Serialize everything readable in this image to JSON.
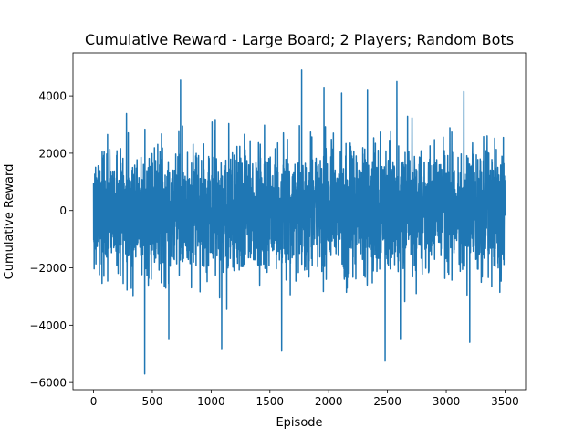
{
  "chart_data": {
    "type": "line",
    "title": "Cumulative Reward - Large Board; 2 Players; Random Bots",
    "xlabel": "Episode",
    "ylabel": "Cumulative Reward",
    "xlim": [
      -175,
      3675
    ],
    "ylim": [
      -6250,
      5500
    ],
    "xticks": [
      0,
      500,
      1000,
      1500,
      2000,
      2500,
      3000,
      3500
    ],
    "yticks": [
      -6000,
      -4000,
      -2000,
      0,
      2000,
      4000
    ],
    "grid": false,
    "series": [
      {
        "color": "#1f77b4",
        "n_points": 3500,
        "typical_range": [
          -2000,
          2000
        ],
        "peaks": [
          {
            "x": 740,
            "y": 4550
          },
          {
            "x": 1770,
            "y": 4900
          },
          {
            "x": 2580,
            "y": 4500
          },
          {
            "x": 1960,
            "y": 4300
          },
          {
            "x": 2110,
            "y": 4100
          },
          {
            "x": 2330,
            "y": 4200
          },
          {
            "x": 3150,
            "y": 4150
          }
        ],
        "troughs": [
          {
            "x": 435,
            "y": -5700
          },
          {
            "x": 2480,
            "y": -5250
          },
          {
            "x": 1600,
            "y": -4900
          },
          {
            "x": 1090,
            "y": -4850
          },
          {
            "x": 2610,
            "y": -4500
          },
          {
            "x": 640,
            "y": -4500
          },
          {
            "x": 3200,
            "y": -4600
          }
        ]
      }
    ]
  }
}
